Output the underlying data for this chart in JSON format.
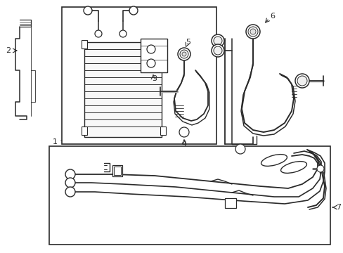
{
  "background": "#ffffff",
  "line_color": "#2a2a2a",
  "lw": 1.3,
  "fig_w": 4.89,
  "fig_h": 3.6,
  "dpi": 100
}
